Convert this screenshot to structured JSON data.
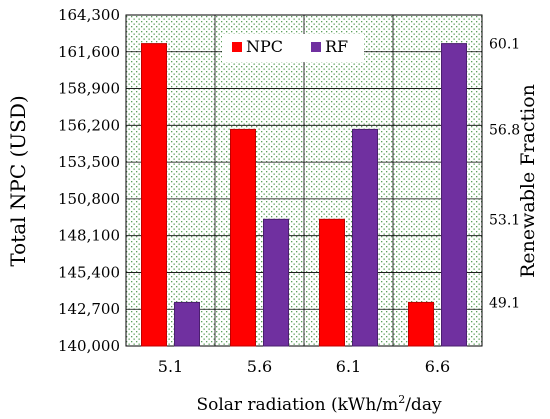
{
  "chart_data": {
    "type": "bar",
    "title": "",
    "categories": [
      "5.1",
      "5.6",
      "6.1",
      "6.6"
    ],
    "series": [
      {
        "name": "NPC",
        "axis": "left",
        "color": "#ff0000",
        "values": [
          162200,
          155900,
          149300,
          143200
        ]
      },
      {
        "name": "RF",
        "axis": "right",
        "color": "#7030a0",
        "values": [
          49.1,
          53.1,
          56.8,
          60.1
        ]
      }
    ],
    "xlabel_prefix": "Solar radiation (kWh/m",
    "xlabel_sup": "2",
    "xlabel_suffix": "/day",
    "ylabel": "Total NPC (USD)",
    "y2label": "Renewable Fraction",
    "ylim": [
      140000,
      164300
    ],
    "yticks": [
      "140,000",
      "142,700",
      "145,400",
      "148,100",
      "150,800",
      "153,500",
      "156,200",
      "158,900",
      "161,600",
      "164,300"
    ],
    "y2ticks": [
      "49.1",
      "53.1",
      "56.8",
      "60.1"
    ],
    "legend": "top-center",
    "grid": true,
    "plot_background": "#c8e6c8",
    "background_pattern": "dotted"
  }
}
